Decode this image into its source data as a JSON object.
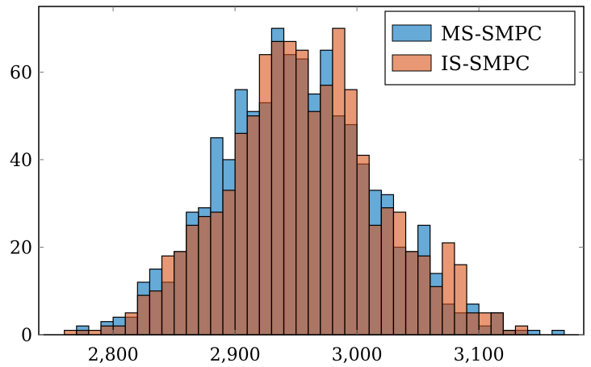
{
  "chart_data": {
    "type": "bar",
    "subtype": "overlapping-histogram",
    "title": "",
    "xlabel": "",
    "ylabel": "",
    "bin_start": 2760,
    "bin_width": 10,
    "xlim": [
      2739,
      3186
    ],
    "ylim": [
      0,
      75
    ],
    "xticks": [
      2800,
      2900,
      3000,
      3100
    ],
    "xtick_labels": [
      "2,800",
      "2,900",
      "3,000",
      "3,100"
    ],
    "yticks": [
      0,
      20,
      40,
      60
    ],
    "ytick_labels": [
      "0",
      "20",
      "40",
      "60"
    ],
    "grid": false,
    "legend_position": "top-right",
    "series": [
      {
        "name": "MS-SMPC",
        "color": "#0072BD",
        "opacity": 0.6,
        "values": [
          0,
          2,
          0,
          3,
          4,
          4,
          12,
          15,
          12,
          19,
          28,
          29,
          45,
          40,
          56,
          51,
          53,
          70,
          64,
          63,
          55,
          65,
          50,
          48,
          39,
          33,
          32,
          20,
          19,
          25,
          14,
          7,
          5,
          7,
          2,
          5,
          1,
          1,
          1,
          0,
          1
        ]
      },
      {
        "name": "IS-SMPC",
        "color": "#D95319",
        "opacity": 0.6,
        "values": [
          1,
          1,
          1,
          2,
          2,
          5,
          9,
          10,
          18,
          19,
          25,
          27,
          28,
          33,
          46,
          50,
          64,
          67,
          67,
          65,
          51,
          57,
          70,
          56,
          41,
          25,
          29,
          28,
          19,
          18,
          11,
          21,
          16,
          5,
          5,
          5,
          1,
          2,
          0,
          0,
          0
        ]
      }
    ]
  }
}
